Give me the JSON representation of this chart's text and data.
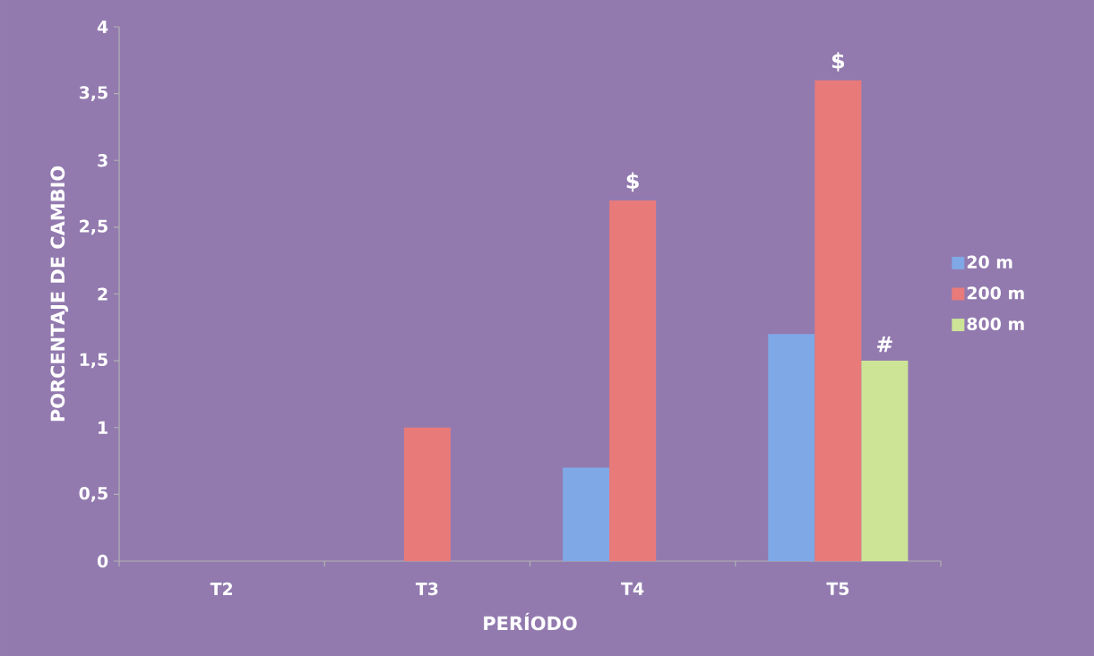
{
  "chart_data": {
    "type": "bar",
    "xlabel": "PERÍODO",
    "ylabel": "PORCENTAJE DE CAMBIO",
    "categories": [
      "T2",
      "T3",
      "T4",
      "T5"
    ],
    "series": [
      {
        "name": "20  m",
        "color": "#7fa9e6",
        "values": [
          null,
          null,
          0.7,
          1.7
        ]
      },
      {
        "name": "200  m",
        "color": "#e87a7a",
        "values": [
          null,
          1,
          2.7,
          3.6
        ],
        "value_labels": [
          null,
          null,
          "$",
          "$"
        ]
      },
      {
        "name": "800  m",
        "color": "#cde497",
        "values": [
          null,
          null,
          null,
          1.5
        ],
        "value_labels": [
          null,
          null,
          null,
          "#"
        ]
      }
    ],
    "ylim": [
      0,
      4
    ],
    "yticks": [
      0,
      {
        "value": 0.5,
        "label": "0,5"
      },
      1,
      {
        "value": 1.5,
        "label": "1,5"
      },
      2,
      {
        "value": 2.5,
        "label": "2,5"
      },
      3,
      {
        "value": 3.5,
        "label": "3,5"
      },
      4
    ],
    "legend": "right",
    "grid": false
  }
}
